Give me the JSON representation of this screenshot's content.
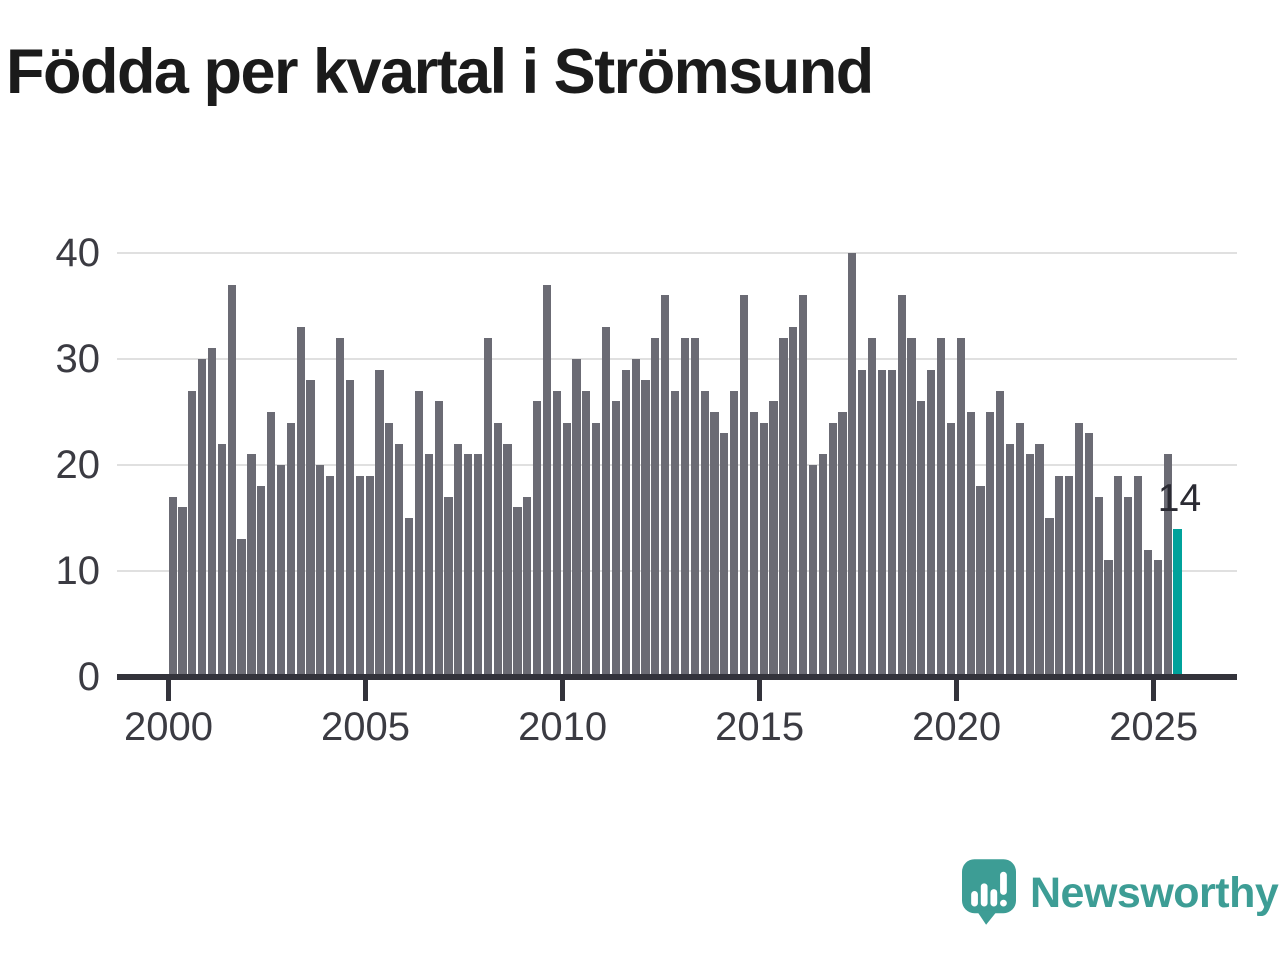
{
  "header": {
    "title": "Födda per kvartal i Strömsund"
  },
  "chart_data": {
    "type": "bar",
    "title": "Födda per kvartal i Strömsund",
    "unit_period": "quarter",
    "x_start": "2000-Q1",
    "x_end": "2025-Q3",
    "x_tick_years": [
      2000,
      2005,
      2010,
      2015,
      2020,
      2025
    ],
    "y_ticks": [
      0,
      10,
      20,
      30,
      40
    ],
    "ylim": [
      0,
      40
    ],
    "grid": "horizontal",
    "legend": "none",
    "bar_color": "#6b6b74",
    "highlight_color": "#00a29b",
    "highlight_index": 102,
    "annotation": {
      "text": "14",
      "value": 14,
      "target": "last-bar"
    },
    "values": [
      17,
      16,
      27,
      30,
      31,
      22,
      37,
      13,
      21,
      18,
      25,
      20,
      24,
      33,
      28,
      20,
      19,
      32,
      28,
      19,
      19,
      29,
      24,
      22,
      15,
      27,
      21,
      26,
      17,
      22,
      21,
      21,
      32,
      24,
      22,
      16,
      17,
      26,
      37,
      27,
      24,
      30,
      27,
      24,
      33,
      26,
      29,
      30,
      28,
      32,
      36,
      27,
      32,
      32,
      27,
      25,
      23,
      27,
      36,
      25,
      24,
      26,
      32,
      33,
      36,
      20,
      21,
      24,
      25,
      40,
      29,
      32,
      29,
      29,
      36,
      32,
      26,
      29,
      32,
      24,
      32,
      25,
      18,
      25,
      27,
      22,
      24,
      21,
      22,
      15,
      19,
      19,
      24,
      23,
      17,
      11,
      19,
      17,
      19,
      12,
      11,
      21,
      14
    ]
  },
  "branding": {
    "name": "Newsworthy",
    "color": "#3d9d95",
    "icon": "newsworthy-speech-bubble-bar-chart-icon"
  }
}
